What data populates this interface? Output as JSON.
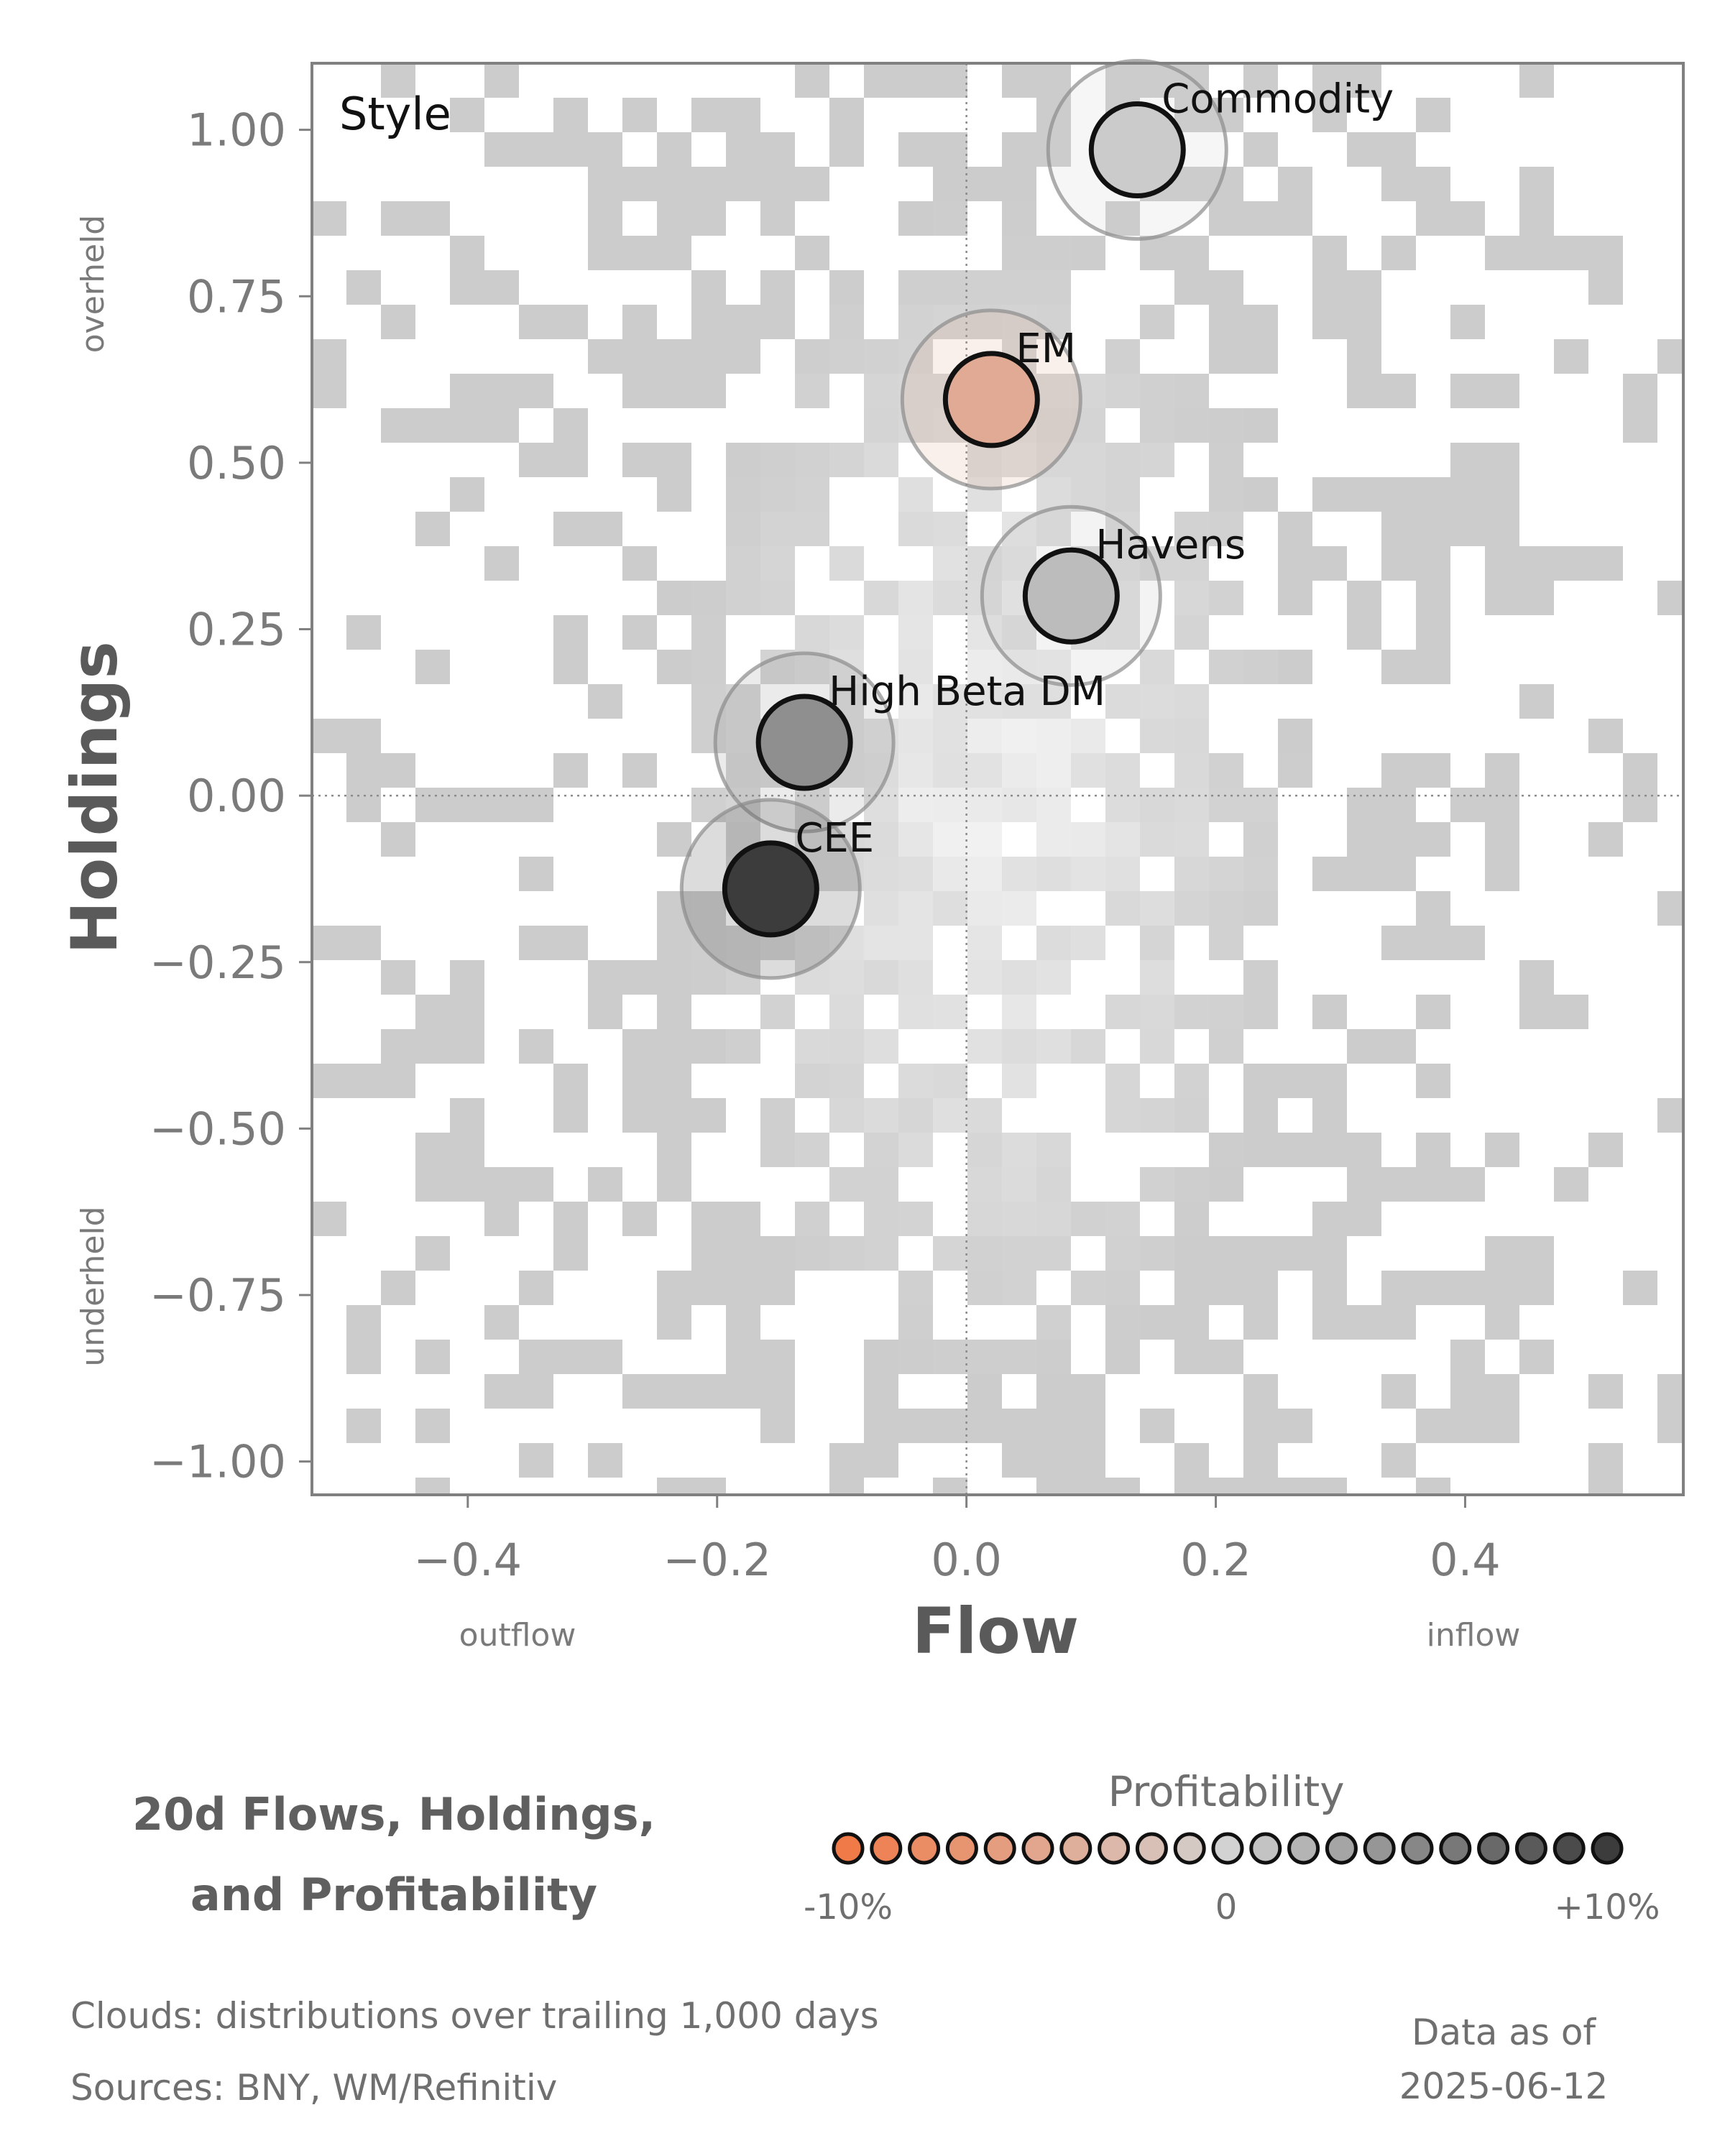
{
  "chart_data": {
    "type": "scatter",
    "panel_label": "Style",
    "xlabel": "Flow",
    "ylabel": "Holdings",
    "x_ticks": [
      "−0.4",
      "−0.2",
      "0.0",
      "0.2",
      "0.4"
    ],
    "x_tick_values": [
      -0.4,
      -0.2,
      0.0,
      0.2,
      0.4
    ],
    "y_ticks": [
      "1.00",
      "0.75",
      "0.50",
      "0.25",
      "0.00",
      "−0.25",
      "−0.50",
      "−0.75",
      "−1.00"
    ],
    "y_tick_values": [
      1.0,
      0.75,
      0.5,
      0.25,
      0.0,
      -0.25,
      -0.5,
      -0.75,
      -1.0
    ],
    "xlim": [
      -0.525,
      0.575
    ],
    "ylim": [
      -1.05,
      1.1
    ],
    "x_side_labels": {
      "left": "outflow",
      "right": "inflow"
    },
    "y_side_labels": {
      "top": "overheld",
      "bottom": "underheld"
    },
    "reference_lines": {
      "x": 0.0,
      "y": 0.0,
      "style": "dotted"
    },
    "background": "2D histogram clouds in light gray",
    "points": [
      {
        "label": "Commodity",
        "x": 0.137,
        "y": 0.97,
        "profitability": 0.5
      },
      {
        "label": "EM",
        "x": 0.02,
        "y": 0.595,
        "profitability": -4.5
      },
      {
        "label": "Havens",
        "x": 0.084,
        "y": 0.3,
        "profitability": 1.5
      },
      {
        "label": "High Beta DM",
        "x": -0.13,
        "y": 0.08,
        "profitability": 4.5
      },
      {
        "label": "CEE",
        "x": -0.157,
        "y": -0.14,
        "profitability": 10.0
      }
    ],
    "colorbar": {
      "title": "Profitability",
      "tick_labels": [
        "-10%",
        "0",
        "+10%"
      ],
      "min": -10,
      "max": 10,
      "n_dots": 21,
      "colors": {
        "neg": "#f07a48",
        "mid": "#d2d2d2",
        "pos": "#3c3c3c"
      }
    }
  },
  "footer": {
    "title_line1": "20d Flows, Holdings,",
    "title_line2": "and Profitability",
    "clouds_note": "Clouds:  distributions over trailing 1,000 days",
    "sources_note": "Sources:  BNY, WM/Refinitiv",
    "data_as_of_label": "Data as of",
    "data_as_of_date": "2025-06-12"
  }
}
